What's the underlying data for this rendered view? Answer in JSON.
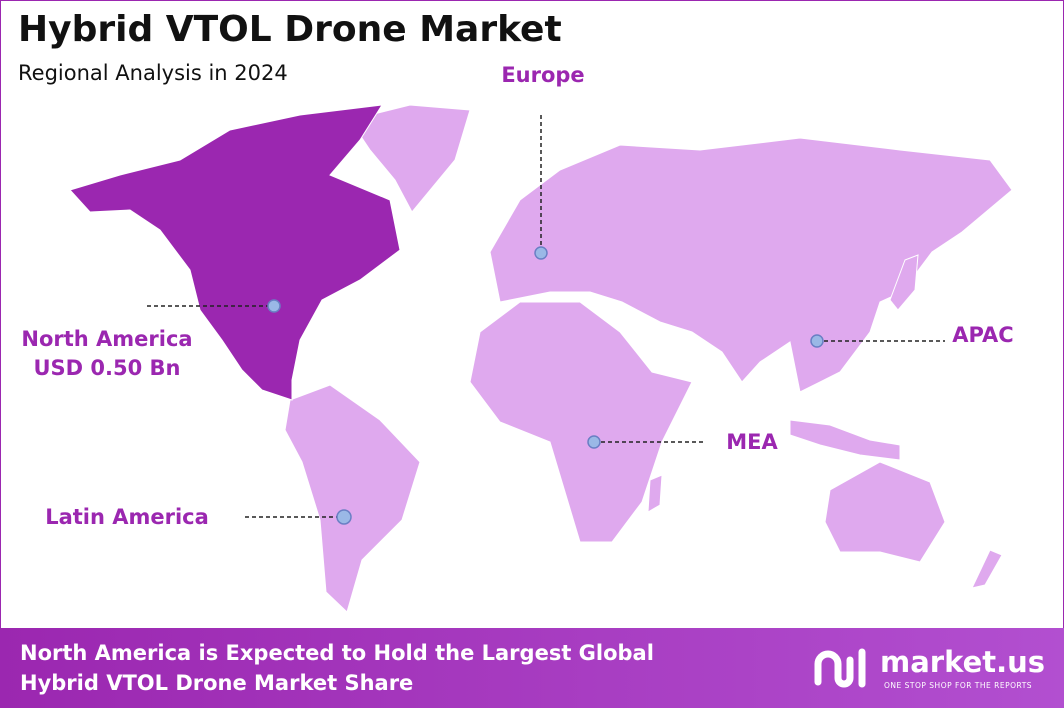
{
  "header": {
    "title": "Hybrid VTOL Drone Market",
    "subtitle": "Regional Analysis in 2024"
  },
  "regions": [
    {
      "label": "North America",
      "value": "USD 0.50 Bn"
    },
    {
      "label": "Europe"
    },
    {
      "label": "APAC"
    },
    {
      "label": "MEA"
    },
    {
      "label": "Latin America"
    }
  ],
  "footer": {
    "lines": [
      "North America is Expected to Hold the Largest Global",
      "Hybrid VTOL Drone Market Share"
    ]
  },
  "logo": {
    "name": "market.us",
    "tagline": "ONE STOP SHOP FOR THE REPORTS"
  }
}
